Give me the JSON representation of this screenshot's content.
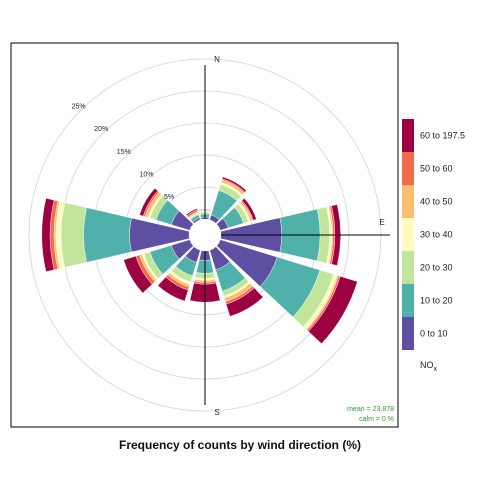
{
  "chart_data": {
    "type": "polar-bar",
    "title": "Frequency of counts by wind direction (%)",
    "compass": {
      "north": "N",
      "east": "E",
      "south": "S"
    },
    "radial_axis": {
      "ticks": [
        5,
        10,
        15,
        20,
        25
      ],
      "tick_labels": [
        "5%",
        "10%",
        "15%",
        "20%",
        "25%"
      ],
      "max": 25,
      "grid": true
    },
    "legend": {
      "title": "NO",
      "title_subscript": "x",
      "position": "right",
      "bins": [
        {
          "label": "0 to 10",
          "color": "#5e4fa2"
        },
        {
          "label": "10 to 20",
          "color": "#50b1aa"
        },
        {
          "label": "20 to 30",
          "color": "#c1e59a"
        },
        {
          "label": "30 to 40",
          "color": "#fdfcc0"
        },
        {
          "label": "40 to 50",
          "color": "#fdbe6f"
        },
        {
          "label": "50 to 60",
          "color": "#f26a4a"
        },
        {
          "label": "60 to 197.5",
          "color": "#9e0142"
        }
      ]
    },
    "annotations": {
      "mean": "mean = 23.878",
      "calm": "calm = 0 %",
      "color": "#2ca02c"
    },
    "directions": [
      0,
      30,
      60,
      90,
      120,
      150,
      180,
      210,
      240,
      270,
      300,
      330
    ],
    "series": [
      {
        "name": "0 to 10",
        "values": [
          0.3,
          0.8,
          1.3,
          9.5,
          9.3,
          3.2,
          1.5,
          2.0,
          3.0,
          9.3,
          3.0,
          0.3
        ]
      },
      {
        "name": "10 to 20",
        "values": [
          0.5,
          4.0,
          2.5,
          6.0,
          7.0,
          3.5,
          2.0,
          2.2,
          3.5,
          7.2,
          2.5,
          0.5
        ]
      },
      {
        "name": "20 to 30",
        "values": [
          0.3,
          1.0,
          0.8,
          1.5,
          2.2,
          0.8,
          0.8,
          1.0,
          1.0,
          3.5,
          1.0,
          0.2
        ]
      },
      {
        "name": "30 to 40",
        "values": [
          0.1,
          0.3,
          0.3,
          0.3,
          0.6,
          0.3,
          0.3,
          0.4,
          0.3,
          0.8,
          0.3,
          0.1
        ]
      },
      {
        "name": "40 to 50",
        "values": [
          0.1,
          0.4,
          0.3,
          0.2,
          0.2,
          0.6,
          0.3,
          0.4,
          0.4,
          0.3,
          0.5,
          0.2
        ]
      },
      {
        "name": "50 to 60",
        "values": [
          0.1,
          0.2,
          0.2,
          0.3,
          0.3,
          0.4,
          0.3,
          0.5,
          0.6,
          0.6,
          0.3,
          0.3
        ]
      },
      {
        "name": "60 to 197.5",
        "values": [
          0.1,
          0.3,
          0.5,
          0.9,
          2.8,
          2.0,
          2.8,
          1.8,
          2.0,
          1.3,
          0.6,
          0.2
        ]
      }
    ]
  }
}
